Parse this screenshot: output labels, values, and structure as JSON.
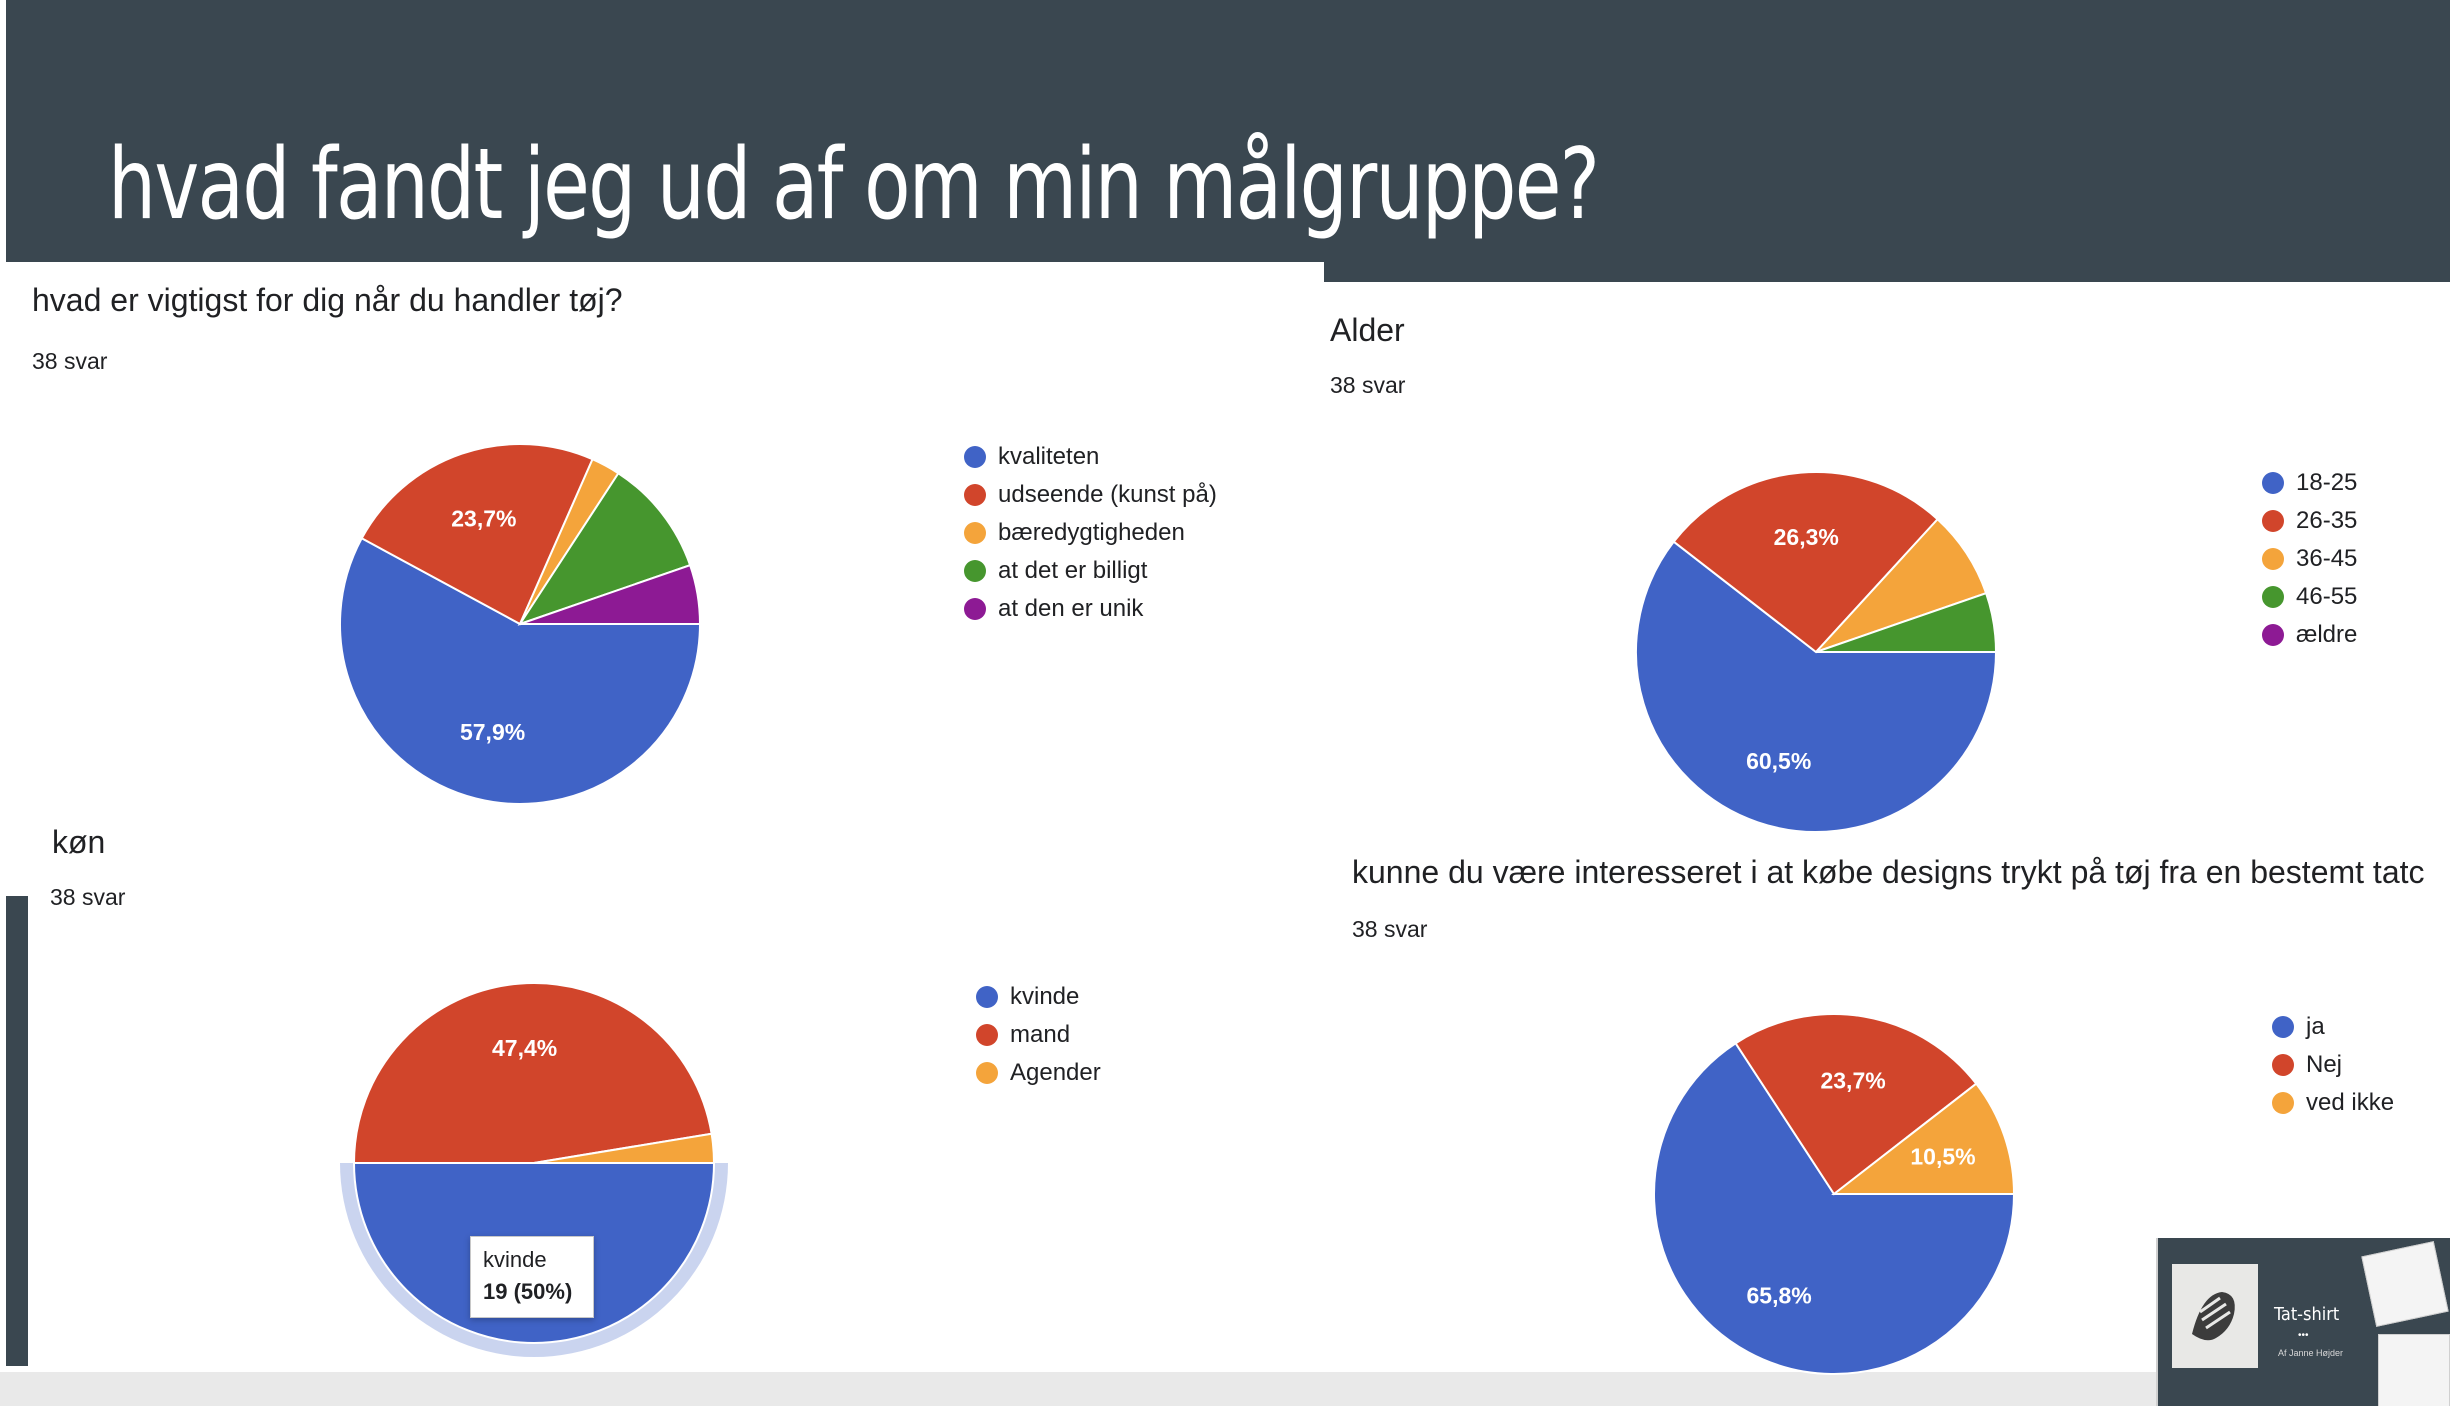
{
  "slide": {
    "title": "hvad fandt jeg ud af om min målgruppe?",
    "header_color": "#3a4750"
  },
  "tooltip": {
    "label": "kvinde",
    "value": "19 (50%)"
  },
  "thumbnail": {
    "title": "Tat-shirt",
    "dots": "•••",
    "subtitle": "Af Janne Højder"
  },
  "chart_data": [
    {
      "type": "pie",
      "title": "hvad er vigtigst for dig når du handler tøj?",
      "subtitle": "38 svar",
      "legend_position": "right",
      "slices": [
        {
          "label": "kvaliteten",
          "value": 57.9,
          "color": "#4063c6",
          "data_label": "57,9%"
        },
        {
          "label": "udseende (kunst på)",
          "value": 23.7,
          "color": "#d1452b",
          "data_label": "23,7%"
        },
        {
          "label": "bæredygtigheden",
          "value": 2.6,
          "color": "#f4a43b",
          "data_label": ""
        },
        {
          "label": "at det er billigt",
          "value": 10.5,
          "color": "#46962e",
          "data_label": ""
        },
        {
          "label": "at den er unik",
          "value": 5.3,
          "color": "#8d1a94",
          "data_label": ""
        }
      ]
    },
    {
      "type": "pie",
      "title": "Alder",
      "subtitle": "38 svar",
      "legend_position": "right",
      "slices": [
        {
          "label": "18-25",
          "value": 60.5,
          "color": "#4063c6",
          "data_label": "60,5%"
        },
        {
          "label": "26-35",
          "value": 26.3,
          "color": "#d1452b",
          "data_label": "26,3%"
        },
        {
          "label": "36-45",
          "value": 7.9,
          "color": "#f4a43b",
          "data_label": ""
        },
        {
          "label": "46-55",
          "value": 5.3,
          "color": "#46962e",
          "data_label": ""
        },
        {
          "label": "ældre",
          "value": 0,
          "color": "#8d1a94",
          "data_label": ""
        }
      ]
    },
    {
      "type": "pie",
      "title": "køn",
      "subtitle": "38 svar",
      "legend_position": "right",
      "highlighted_slice": "kvinde",
      "slices": [
        {
          "label": "kvinde",
          "value": 50.0,
          "color": "#4063c6",
          "data_label": ""
        },
        {
          "label": "mand",
          "value": 47.4,
          "color": "#d1452b",
          "data_label": "47,4%"
        },
        {
          "label": "Agender",
          "value": 2.6,
          "color": "#f4a43b",
          "data_label": ""
        }
      ]
    },
    {
      "type": "pie",
      "title": "kunne du være interesseret i at købe designs trykt på tøj fra en bestemt tatc",
      "subtitle": "38 svar",
      "legend_position": "right",
      "slices": [
        {
          "label": "ja",
          "value": 65.8,
          "color": "#4063c6",
          "data_label": "65,8%"
        },
        {
          "label": "Nej",
          "value": 23.7,
          "color": "#d1452b",
          "data_label": "23,7%"
        },
        {
          "label": "ved ikke",
          "value": 10.5,
          "color": "#f4a43b",
          "data_label": "10,5%"
        }
      ]
    }
  ]
}
